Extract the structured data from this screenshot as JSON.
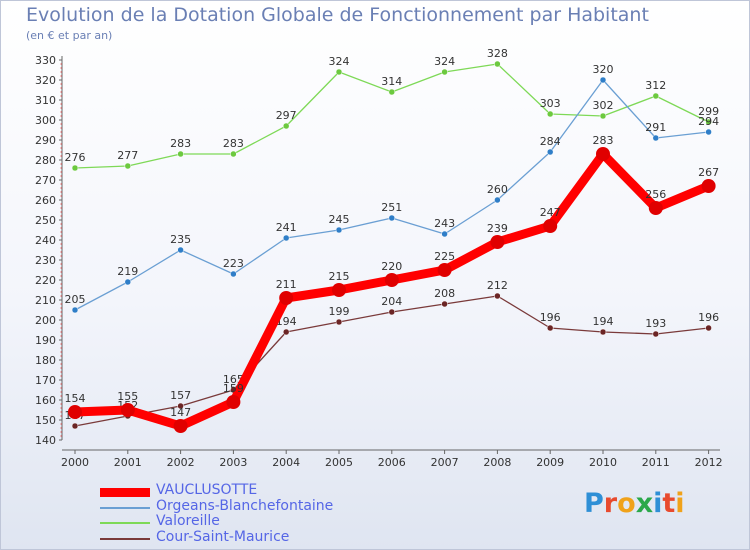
{
  "title": "Evolution de la Dotation Globale de Fonctionnement par Habitant",
  "subtitle": "(en € et par an)",
  "logo": {
    "text": "Proxiti",
    "colors": [
      "#2e8fd6",
      "#e84a2e",
      "#f0a21a",
      "#2aa84a",
      "#2e8fd6",
      "#e84a2e",
      "#f0a21a"
    ]
  },
  "chart_data": {
    "type": "line",
    "x": [
      "2000",
      "2001",
      "2002",
      "2003",
      "2004",
      "2005",
      "2006",
      "2007",
      "2008",
      "2009",
      "2010",
      "2011",
      "2012"
    ],
    "ylim": [
      140,
      330
    ],
    "yticks": [
      140,
      150,
      160,
      170,
      180,
      190,
      200,
      210,
      220,
      230,
      240,
      250,
      260,
      270,
      280,
      290,
      300,
      310,
      320,
      330
    ],
    "grid": false,
    "legend_position": "bottom-left",
    "series": [
      {
        "name": "Valoreille",
        "color": "#7ed957",
        "marker": "#6cc93f",
        "values": [
          276,
          277,
          283,
          283,
          297,
          324,
          314,
          324,
          328,
          303,
          302,
          312,
          299
        ]
      },
      {
        "name": "Orgeans-Blanchefontaine",
        "color": "#6a9fd3",
        "marker": "#2f7ec8",
        "values": [
          205,
          219,
          235,
          223,
          241,
          245,
          251,
          243,
          260,
          284,
          320,
          291,
          294
        ]
      },
      {
        "name": "Cour-Saint-Maurice",
        "color": "#7a3a3a",
        "marker": "#6b2525",
        "values": [
          147,
          152,
          157,
          165,
          194,
          199,
          204,
          208,
          212,
          196,
          194,
          193,
          196
        ]
      },
      {
        "name": "VAUCLUSOTTE",
        "color": "#ff0000",
        "marker": "#e00000",
        "values": [
          154,
          155,
          147,
          159,
          211,
          215,
          220,
          225,
          239,
          247,
          283,
          256,
          267
        ]
      }
    ],
    "data_labels": {
      "Valoreille": [
        "276",
        "277",
        "283",
        "283",
        "297",
        "324",
        "314",
        "324",
        "328",
        "303",
        "302",
        "312",
        "299"
      ],
      "Orgeans-Blanchefontaine": [
        "205",
        "219",
        "235",
        "223",
        "241",
        "245",
        "251",
        "243",
        "260",
        "284",
        "320",
        "291",
        "294"
      ],
      "Cour-Saint-Maurice": [
        "147",
        "152",
        "157",
        "165",
        "194",
        "199",
        "204",
        "208",
        "212",
        "196",
        "194",
        "193",
        "196"
      ],
      "VAUCLUSOTTE": [
        "154",
        "155",
        "147",
        "159",
        "211",
        "215",
        "220",
        "225",
        "239",
        "247",
        "283",
        "256",
        "267"
      ]
    }
  },
  "legend": [
    {
      "label": "VAUCLUSOTTE",
      "color": "#ff0000",
      "weight": "thick"
    },
    {
      "label": "Orgeans-Blanchefontaine",
      "color": "#6a9fd3",
      "weight": "thin"
    },
    {
      "label": "Valoreille",
      "color": "#7ed957",
      "weight": "thin"
    },
    {
      "label": "Cour-Saint-Maurice",
      "color": "#7a3a3a",
      "weight": "thin"
    }
  ]
}
